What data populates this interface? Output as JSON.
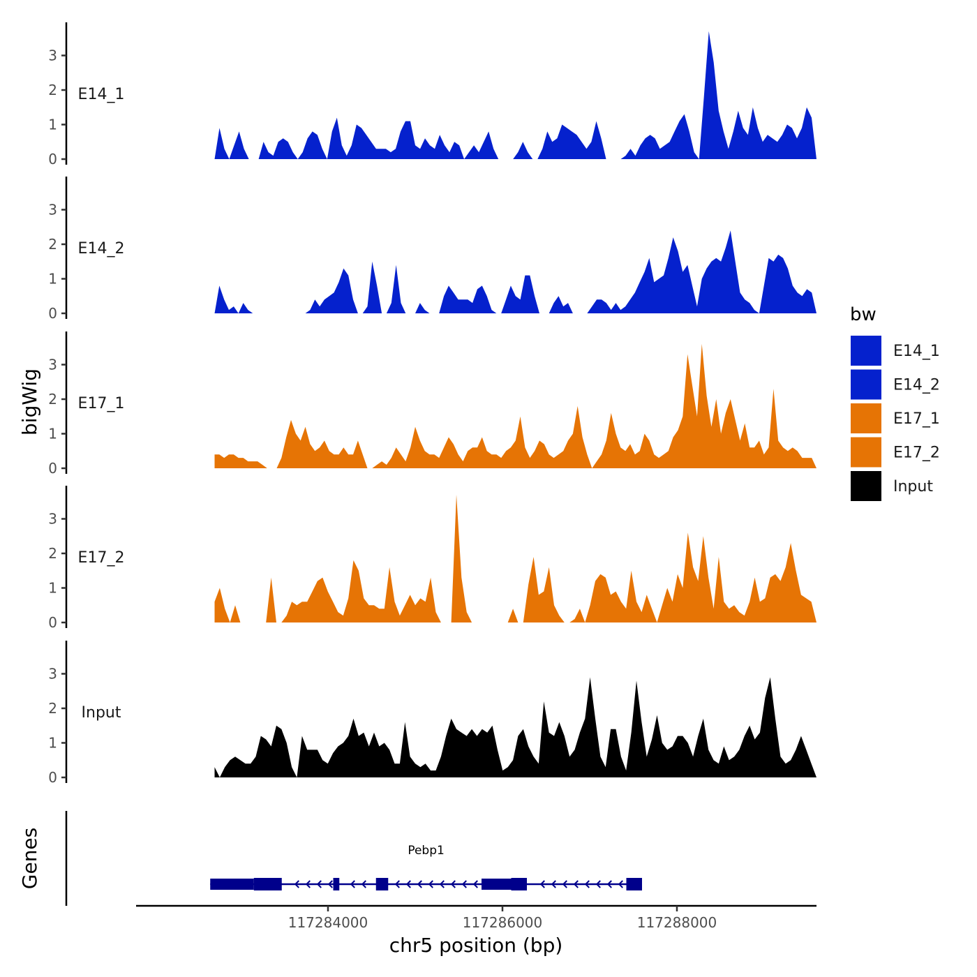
{
  "chart_data": {
    "type": "area",
    "chromosome": "chr5",
    "xlabel": "chr5 position (bp)",
    "ylabel": "bigWig",
    "genes_label": "Genes",
    "xlim": [
      117281800,
      117289600
    ],
    "x_ticks": [
      117284000,
      117286000,
      117288000
    ],
    "x_tick_labels": [
      "117284000",
      "117286000",
      "117288000"
    ],
    "ylim": [
      0,
      4
    ],
    "y_ticks": [
      0,
      1,
      2,
      3
    ],
    "y_tick_labels": [
      "0",
      "1",
      "2",
      "3"
    ],
    "legend": {
      "title": "bw",
      "entries": [
        {
          "label": "E14_1",
          "color": "#0521CD"
        },
        {
          "label": "E14_2",
          "color": "#0521CD"
        },
        {
          "label": "E17_1",
          "color": "#E67405"
        },
        {
          "label": "E17_2",
          "color": "#E67405"
        },
        {
          "label": "Input",
          "color": "#000000"
        }
      ]
    },
    "series": [
      {
        "name": "E14_1",
        "color": "#0521CD",
        "x_start": 117282700,
        "x_end": 117289600,
        "values": [
          0.0,
          0.9,
          0.3,
          0.0,
          0.4,
          0.8,
          0.3,
          0.0,
          0.0,
          0.0,
          0.5,
          0.2,
          0.1,
          0.5,
          0.6,
          0.5,
          0.2,
          0.0,
          0.2,
          0.6,
          0.8,
          0.7,
          0.3,
          0.0,
          0.8,
          1.2,
          0.4,
          0.1,
          0.4,
          1.0,
          0.9,
          0.7,
          0.5,
          0.3,
          0.3,
          0.3,
          0.2,
          0.3,
          0.8,
          1.1,
          1.1,
          0.4,
          0.3,
          0.6,
          0.4,
          0.3,
          0.7,
          0.4,
          0.2,
          0.5,
          0.4,
          0.0,
          0.2,
          0.4,
          0.2,
          0.5,
          0.8,
          0.3,
          0.0,
          0.0,
          0.0,
          0.0,
          0.2,
          0.5,
          0.2,
          0.0,
          0.0,
          0.3,
          0.8,
          0.5,
          0.6,
          1.0,
          0.9,
          0.8,
          0.7,
          0.5,
          0.3,
          0.5,
          1.1,
          0.6,
          0.0,
          0.0,
          0.0,
          0.0,
          0.1,
          0.3,
          0.1,
          0.4,
          0.6,
          0.7,
          0.6,
          0.3,
          0.4,
          0.5,
          0.8,
          1.1,
          1.3,
          0.8,
          0.2,
          0.0,
          1.8,
          3.7,
          2.8,
          1.4,
          0.8,
          0.3,
          0.8,
          1.4,
          0.9,
          0.7,
          1.5,
          0.9,
          0.5,
          0.7,
          0.6,
          0.5,
          0.7,
          1.0,
          0.9,
          0.6,
          0.9,
          1.5,
          1.2,
          0.0
        ]
      },
      {
        "name": "E14_2",
        "color": "#0521CD",
        "x_start": 117282700,
        "x_end": 117289600,
        "values": [
          0.0,
          0.8,
          0.4,
          0.1,
          0.2,
          0.0,
          0.3,
          0.1,
          0.0,
          0.0,
          0.0,
          0.0,
          0.0,
          0.0,
          0.0,
          0.0,
          0.0,
          0.0,
          0.0,
          0.0,
          0.1,
          0.4,
          0.2,
          0.4,
          0.5,
          0.6,
          0.9,
          1.3,
          1.1,
          0.4,
          0.0,
          0.0,
          0.2,
          1.5,
          0.8,
          0.0,
          0.0,
          0.3,
          1.4,
          0.3,
          0.0,
          0.0,
          0.0,
          0.3,
          0.1,
          0.0,
          0.0,
          0.0,
          0.5,
          0.8,
          0.6,
          0.4,
          0.4,
          0.4,
          0.3,
          0.7,
          0.8,
          0.5,
          0.1,
          0.0,
          0.0,
          0.4,
          0.8,
          0.5,
          0.4,
          1.1,
          1.1,
          0.5,
          0.0,
          0.0,
          0.0,
          0.3,
          0.5,
          0.2,
          0.3,
          0.0,
          0.0,
          0.0,
          0.0,
          0.2,
          0.4,
          0.4,
          0.3,
          0.1,
          0.3,
          0.1,
          0.2,
          0.4,
          0.6,
          0.9,
          1.2,
          1.6,
          0.9,
          1.0,
          1.1,
          1.6,
          2.2,
          1.8,
          1.2,
          1.4,
          0.8,
          0.2,
          1.0,
          1.3,
          1.5,
          1.6,
          1.5,
          1.9,
          2.4,
          1.5,
          0.6,
          0.4,
          0.3,
          0.1,
          0.0,
          0.8,
          1.6,
          1.5,
          1.7,
          1.6,
          1.3,
          0.8,
          0.6,
          0.5,
          0.7,
          0.6,
          0.0
        ]
      },
      {
        "name": "E17_1",
        "color": "#E67405",
        "x_start": 117282700,
        "x_end": 117289600,
        "values": [
          0.4,
          0.4,
          0.3,
          0.4,
          0.4,
          0.3,
          0.3,
          0.2,
          0.2,
          0.2,
          0.1,
          0.0,
          0.0,
          0.0,
          0.3,
          0.9,
          1.4,
          1.0,
          0.8,
          1.2,
          0.7,
          0.5,
          0.6,
          0.8,
          0.5,
          0.4,
          0.4,
          0.6,
          0.4,
          0.4,
          0.8,
          0.4,
          0.0,
          0.0,
          0.1,
          0.2,
          0.1,
          0.3,
          0.6,
          0.4,
          0.2,
          0.6,
          1.2,
          0.8,
          0.5,
          0.4,
          0.4,
          0.3,
          0.6,
          0.9,
          0.7,
          0.4,
          0.2,
          0.5,
          0.6,
          0.6,
          0.9,
          0.5,
          0.4,
          0.4,
          0.3,
          0.5,
          0.6,
          0.8,
          1.5,
          0.6,
          0.3,
          0.5,
          0.8,
          0.7,
          0.4,
          0.3,
          0.4,
          0.5,
          0.8,
          1.0,
          1.8,
          0.9,
          0.4,
          0.0,
          0.2,
          0.4,
          0.8,
          1.6,
          1.0,
          0.6,
          0.5,
          0.7,
          0.4,
          0.5,
          1.0,
          0.8,
          0.4,
          0.3,
          0.4,
          0.5,
          0.9,
          1.1,
          1.5,
          3.3,
          2.4,
          1.5,
          3.6,
          2.1,
          1.2,
          2.0,
          1.0,
          1.6,
          2.0,
          1.4,
          0.8,
          1.3,
          0.6,
          0.6,
          0.8,
          0.4,
          0.6,
          2.3,
          0.8,
          0.6,
          0.5,
          0.6,
          0.5,
          0.3,
          0.3,
          0.3,
          0.0
        ]
      },
      {
        "name": "E17_2",
        "color": "#E67405",
        "x_start": 117282700,
        "x_end": 117289600,
        "values": [
          0.6,
          1.0,
          0.4,
          0.0,
          0.5,
          0.0,
          0.0,
          0.0,
          0.0,
          0.0,
          0.0,
          1.3,
          0.0,
          0.0,
          0.2,
          0.6,
          0.5,
          0.6,
          0.6,
          0.9,
          1.2,
          1.3,
          0.9,
          0.6,
          0.3,
          0.2,
          0.7,
          1.8,
          1.5,
          0.7,
          0.5,
          0.5,
          0.4,
          0.4,
          1.6,
          0.6,
          0.2,
          0.5,
          0.8,
          0.5,
          0.7,
          0.6,
          1.3,
          0.3,
          0.0,
          0.0,
          0.0,
          3.7,
          1.3,
          0.3,
          0.0,
          0.0,
          0.0,
          0.0,
          0.0,
          0.0,
          0.0,
          0.0,
          0.4,
          0.0,
          0.0,
          1.1,
          1.9,
          0.8,
          0.9,
          1.6,
          0.5,
          0.2,
          0.0,
          0.0,
          0.1,
          0.4,
          0.0,
          0.5,
          1.2,
          1.4,
          1.3,
          0.8,
          0.9,
          0.6,
          0.4,
          1.5,
          0.6,
          0.3,
          0.8,
          0.4,
          0.0,
          0.5,
          1.0,
          0.6,
          1.4,
          1.0,
          2.6,
          1.6,
          1.2,
          2.5,
          1.3,
          0.4,
          1.9,
          0.6,
          0.4,
          0.5,
          0.3,
          0.2,
          0.6,
          1.3,
          0.6,
          0.7,
          1.3,
          1.4,
          1.2,
          1.6,
          2.3,
          1.5,
          0.8,
          0.7,
          0.6,
          0.0
        ]
      },
      {
        "name": "Input",
        "color": "#000000",
        "x_start": 117282700,
        "x_end": 117289600,
        "values": [
          0.3,
          0.0,
          0.3,
          0.5,
          0.6,
          0.5,
          0.4,
          0.4,
          0.6,
          1.2,
          1.1,
          0.9,
          1.5,
          1.4,
          1.0,
          0.3,
          0.0,
          1.2,
          0.8,
          0.8,
          0.8,
          0.5,
          0.4,
          0.7,
          0.9,
          1.0,
          1.2,
          1.7,
          1.2,
          1.3,
          0.9,
          1.3,
          0.9,
          1.0,
          0.8,
          0.4,
          0.4,
          1.6,
          0.6,
          0.4,
          0.3,
          0.4,
          0.2,
          0.2,
          0.6,
          1.2,
          1.7,
          1.4,
          1.3,
          1.2,
          1.4,
          1.2,
          1.4,
          1.3,
          1.5,
          0.8,
          0.2,
          0.3,
          0.5,
          1.2,
          1.4,
          0.9,
          0.6,
          0.4,
          2.2,
          1.3,
          1.2,
          1.6,
          1.2,
          0.6,
          0.8,
          1.3,
          1.7,
          2.9,
          1.7,
          0.6,
          0.3,
          1.4,
          1.4,
          0.6,
          0.2,
          1.3,
          2.8,
          1.6,
          0.6,
          1.1,
          1.8,
          1.0,
          0.8,
          0.9,
          1.2,
          1.2,
          1.0,
          0.6,
          1.2,
          1.7,
          0.8,
          0.5,
          0.4,
          0.9,
          0.5,
          0.6,
          0.8,
          1.2,
          1.5,
          1.1,
          1.3,
          2.3,
          2.9,
          1.7,
          0.6,
          0.4,
          0.5,
          0.8,
          1.2,
          0.8,
          0.4,
          0.0
        ]
      }
    ],
    "gene_track": {
      "gene_name": "Pebp1",
      "strand": "-",
      "color": "#00008B",
      "start": 117282650,
      "end": 117287600,
      "exons": [
        {
          "start": 117282650,
          "end": 117283150,
          "type": "utr"
        },
        {
          "start": 117283150,
          "end": 117283470,
          "type": "cds"
        },
        {
          "start": 117284060,
          "end": 117284130,
          "type": "cds"
        },
        {
          "start": 117284550,
          "end": 117284690,
          "type": "cds"
        },
        {
          "start": 117285760,
          "end": 117286100,
          "type": "utr"
        },
        {
          "start": 117286100,
          "end": 117286280,
          "type": "cds"
        },
        {
          "start": 117287420,
          "end": 117287600,
          "type": "cds"
        }
      ]
    }
  }
}
